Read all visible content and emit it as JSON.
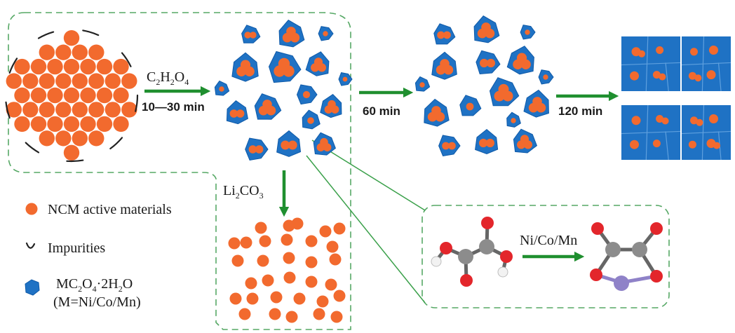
{
  "colors": {
    "ncm": "#f26a2e",
    "oxalate": "#1f72c4",
    "oxalate_edge": "#0f5aa8",
    "arrow": "#1f8f2f",
    "dash": "#56a865",
    "carbon": "#8c8c8c",
    "oxygen": "#e3262b",
    "hydrogen": "#f2f2f2",
    "metal": "#8f82c8",
    "impurity": "#222222"
  },
  "steps": {
    "step1_reagent": {
      "main": "C",
      "s1": "2",
      "m2": "H",
      "s2": "2",
      "m3": "O",
      "s3": "4"
    },
    "step1_time": "10—30 min",
    "step2_time": "60 min",
    "step3_time": "120 min",
    "down_reagent": {
      "main": "Li",
      "s1": "2",
      "m2": "CO",
      "s2": "3"
    }
  },
  "legend": {
    "ncm_label": "NCM active materials",
    "impurity_label": "Impurities",
    "oxalate_line1": {
      "m1": "MC",
      "s1": "2",
      "m2": "O",
      "s2": "4",
      "m3": "·2H",
      "s3": "2",
      "m4": "O"
    },
    "oxalate_line2": "(M=Ni/Co/Mn)"
  },
  "reaction": {
    "metal_label": "Ni/Co/Mn"
  }
}
